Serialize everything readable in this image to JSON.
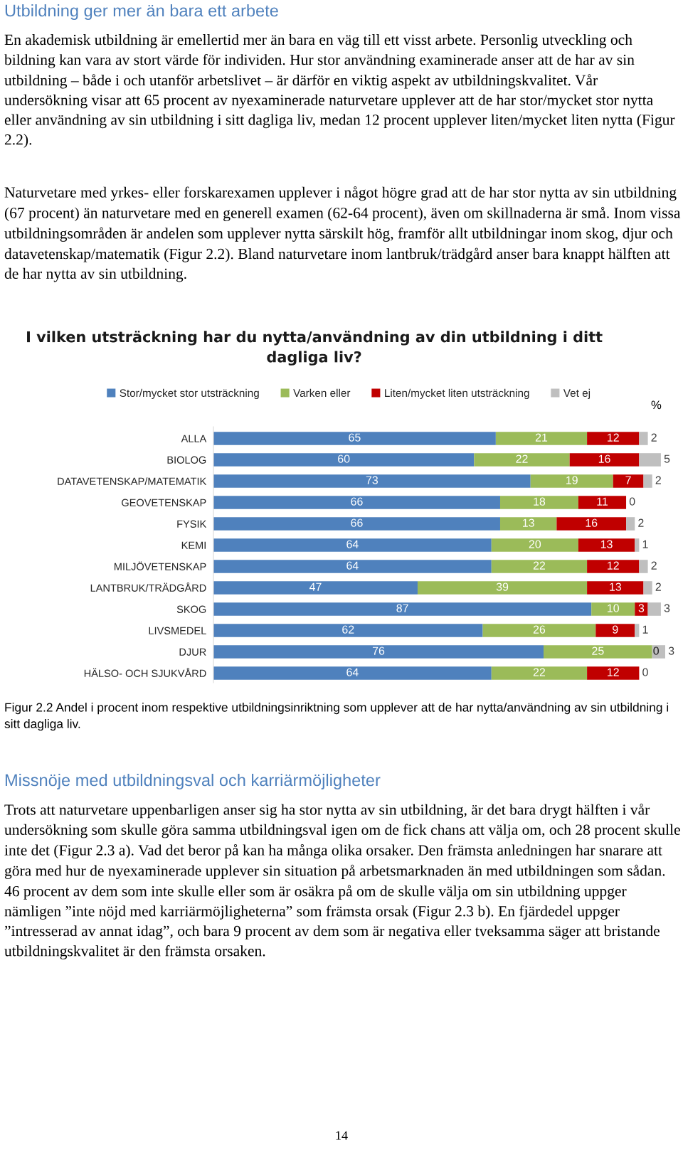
{
  "chart_data": {
    "type": "bar",
    "orientation": "horizontal",
    "stacked": true,
    "data_labels": true,
    "legend": "top",
    "grid": false,
    "tick_labels": "y",
    "title": "I vilken utsträckning har du nytta/användning av din utbildning i ditt dagliga liv?",
    "categories": [
      "ALLA",
      "BIOLOG",
      "DATAVETENSKAP/MATEMATIK",
      "GEOVETENSKAP",
      "FYSIK",
      "KEMI",
      "MILJÖVETENSKAP",
      "LANTBRUK/TRÄDGÅRD",
      "SKOG",
      "LIVSMEDEL",
      "DJUR",
      "HÄLSO- OCH SJUKVÅRD"
    ],
    "series": [
      {
        "name": "Stor/mycket stor utsträckning",
        "color": "#4f81bd",
        "values": [
          65,
          60,
          73,
          66,
          66,
          64,
          64,
          47,
          87,
          62,
          76,
          64
        ]
      },
      {
        "name": "Varken eller",
        "color": "#9bbb59",
        "values": [
          21,
          22,
          19,
          18,
          13,
          20,
          22,
          39,
          10,
          26,
          25,
          22
        ]
      },
      {
        "name": "Liten/mycket liten utsträckning",
        "color": "#c00000",
        "values": [
          12,
          16,
          7,
          11,
          16,
          13,
          12,
          13,
          3,
          9,
          0,
          12
        ]
      },
      {
        "name": "Vet ej",
        "color": "#bfbfbf",
        "values": [
          2,
          5,
          2,
          0,
          2,
          1,
          2,
          2,
          3,
          1,
          3,
          0
        ]
      }
    ],
    "annotations": [
      "Utbildning ger mer än bara ett arbete",
      "En akademisk utbildning är emellertid mer än bara en väg till ett visst arbete. Personlig utveckling och bildning kan vara av stort värde för individen. Hur stor användning examinerade anser att de har av sin utbildning – både i och utanför arbetslivet – är därför en viktig aspekt av utbildningskvalitet. Vår undersökning visar att 65 procent av nyexaminerade naturvetare upplever att de har stor/mycket stor nytta eller användning av sin utbildning i sitt dagliga liv, medan 12 procent upplever liten/mycket liten nytta (Figur 2.2).",
      "Naturvetare med yrkes- eller forskarexamen upplever i något högre grad att de har stor nytta av sin utbildning (67 procent) än naturvetare med en generell examen (62-64 procent), även om skillnaderna är små. Inom vissa utbildningsområden är andelen som upplever nytta särskilt hög, framför allt utbildningar inom skog, djur och datavetenskap/matematik (Figur 2.2). Bland naturvetare inom lantbruk/trädgård anser bara knappt hälften att de har nytta av sin utbildning.",
      "%",
      "Figur 2.2 Andel i procent inom respektive utbildningsinriktning som upplever att de har nytta/användning av sin utbildning i sitt dagliga liv.",
      "Missnöje med utbildningsval och karriärmöjligheter",
      "Trots att naturvetare uppenbarligen anser sig ha stor nytta av sin utbildning, är det bara drygt hälften i vår undersökning som skulle göra samma utbildningsval igen om de fick chans att välja om, och 28 procent skulle inte det (Figur 2.3 a). Vad det beror på kan ha många olika orsaker. Den främsta anledningen har snarare att göra med hur de nyexaminerade upplever sin situation på arbetsmarknaden än med utbildningen som sådan. 46 procent av dem som inte skulle eller som är osäkra på om de skulle välja om sin utbildning uppger nämligen ”inte nöjd med karriärmöjligheterna” som främsta orsak (Figur 2.3 b). En fjärdedel uppger ”intresserad av annat idag”, och bara 9 procent av dem som är negativa eller tveksamma säger att bristande utbildningskvalitet är den främsta orsaken.",
      "14"
    ]
  }
}
